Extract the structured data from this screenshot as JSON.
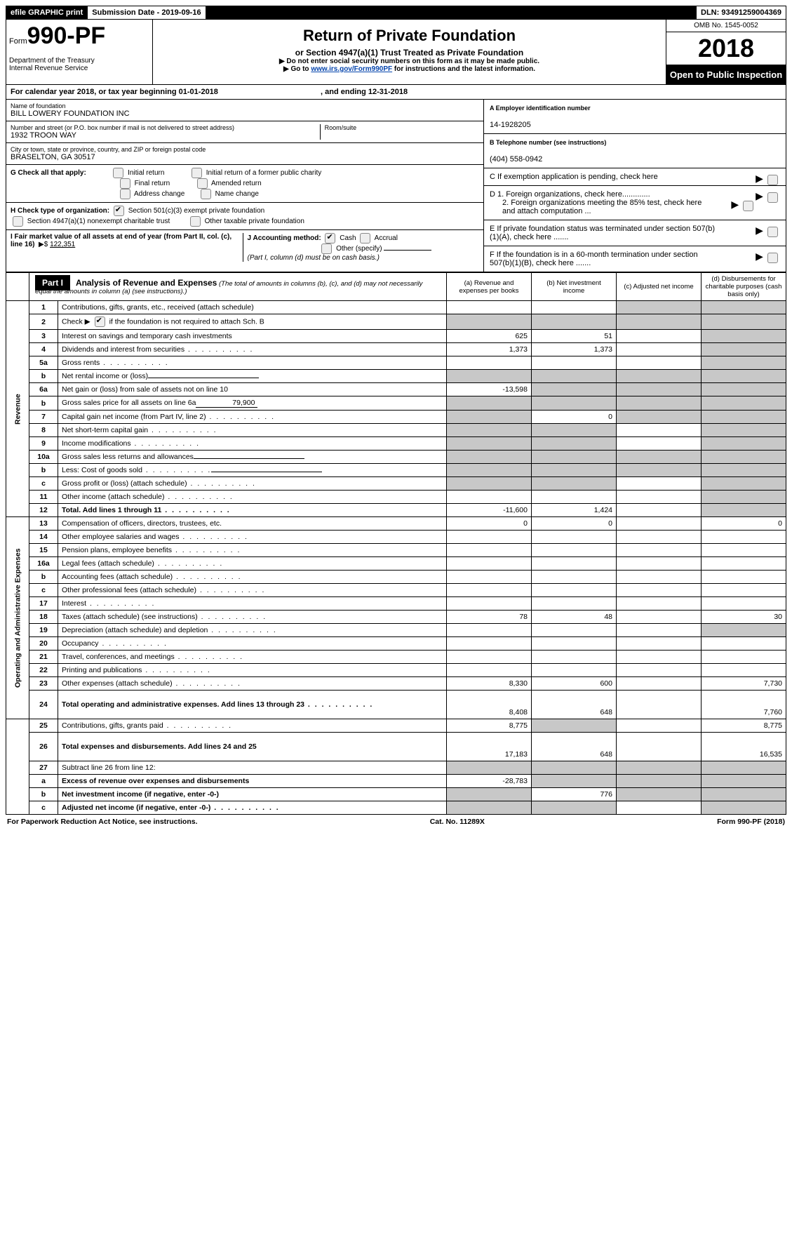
{
  "top": {
    "efile": "efile GRAPHIC print",
    "submission": "Submission Date - 2019-09-16",
    "dln": "DLN: 93491259004369"
  },
  "header": {
    "form_prefix": "Form",
    "form_number": "990-PF",
    "dept": "Department of the Treasury\nInternal Revenue Service",
    "title": "Return of Private Foundation",
    "subtitle": "or Section 4947(a)(1) Trust Treated as Private Foundation",
    "warn": "Do not enter social security numbers on this form as it may be made public.",
    "goto_prefix": "Go to ",
    "goto_link": "www.irs.gov/Form990PF",
    "goto_suffix": " for instructions and the latest information.",
    "omb": "OMB No. 1545-0052",
    "year": "2018",
    "open": "Open to Public Inspection"
  },
  "calendar": {
    "text_a": "For calendar year 2018, or tax year beginning 01-01-2018",
    "text_b": ", and ending 12-31-2018"
  },
  "entity": {
    "name_lbl": "Name of foundation",
    "name": "BILL LOWERY FOUNDATION INC",
    "street_lbl": "Number and street (or P.O. box number if mail is not delivered to street address)",
    "street": "1932 TROON WAY",
    "room_lbl": "Room/suite",
    "city_lbl": "City or town, state or province, country, and ZIP or foreign postal code",
    "city": "BRASELTON, GA   30517",
    "ein_lbl": "A Employer identification number",
    "ein": "14-1928205",
    "phone_lbl": "B Telephone number (see instructions)",
    "phone": "(404) 558-0942",
    "c": "C  If exemption application is pending, check here",
    "d1": "D 1. Foreign organizations, check here.............",
    "d2": "2. Foreign organizations meeting the 85% test, check here and attach computation ...",
    "e": "E   If private foundation status was terminated under section 507(b)(1)(A), check here .......",
    "f": "F   If the foundation is in a 60-month termination under section 507(b)(1)(B), check here ......."
  },
  "g": {
    "label": "G Check all that apply:",
    "opts": [
      "Initial return",
      "Initial return of a former public charity",
      "Final return",
      "Amended return",
      "Address change",
      "Name change"
    ]
  },
  "h": {
    "label": "H Check type of organization:",
    "opt1": "Section 501(c)(3) exempt private foundation",
    "opt2": "Section 4947(a)(1) nonexempt charitable trust",
    "opt3": "Other taxable private foundation"
  },
  "i": {
    "label": "I Fair market value of all assets at end of year (from Part II, col. (c), line 16)",
    "value": "122,351"
  },
  "j": {
    "label": "J Accounting method:",
    "cash": "Cash",
    "accrual": "Accrual",
    "other": "Other (specify)",
    "note": "(Part I, column (d) must be on cash basis.)"
  },
  "part1": {
    "label": "Part I",
    "title": "Analysis of Revenue and Expenses",
    "note": "(The total of amounts in columns (b), (c), and (d) may not necessarily equal the amounts in column (a) (see instructions).)",
    "cols": {
      "a": "(a)    Revenue and expenses per books",
      "b": "(b)    Net investment income",
      "c": "(c)    Adjusted net income",
      "d": "(d)    Disbursements for charitable purposes (cash basis only)"
    }
  },
  "side": {
    "rev": "Revenue",
    "exp": "Operating and Administrative Expenses"
  },
  "rows": [
    {
      "n": "1",
      "t": "Contributions, gifts, grants, etc., received (attach schedule)",
      "a": "",
      "b": "",
      "c": "g",
      "d": "g"
    },
    {
      "n": "2",
      "t": "Check ▶ __CHK__ if the foundation is not required to attach Sch. B",
      "a": "g",
      "b": "g",
      "c": "g",
      "d": "g"
    },
    {
      "n": "3",
      "t": "Interest on savings and temporary cash investments",
      "a": "625",
      "b": "51",
      "c": "",
      "d": "g"
    },
    {
      "n": "4",
      "t": "Dividends and interest from securities",
      "dots": true,
      "a": "1,373",
      "b": "1,373",
      "c": "",
      "d": "g"
    },
    {
      "n": "5a",
      "t": "Gross rents",
      "dots": true,
      "a": "",
      "b": "",
      "c": "",
      "d": "g"
    },
    {
      "n": "b",
      "t": "Net rental income or (loss)",
      "input": true,
      "a": "g",
      "b": "g",
      "c": "g",
      "d": "g"
    },
    {
      "n": "6a",
      "t": "Net gain or (loss) from sale of assets not on line 10",
      "a": "-13,598",
      "b": "g",
      "c": "g",
      "d": "g"
    },
    {
      "n": "b",
      "t": "Gross sales price for all assets on line 6a",
      "inline": "79,900",
      "a": "g",
      "b": "g",
      "c": "g",
      "d": "g"
    },
    {
      "n": "7",
      "t": "Capital gain net income (from Part IV, line 2)",
      "dots": true,
      "a": "g",
      "b": "0",
      "c": "g",
      "d": "g"
    },
    {
      "n": "8",
      "t": "Net short-term capital gain",
      "dots": true,
      "a": "g",
      "b": "g",
      "c": "",
      "d": "g"
    },
    {
      "n": "9",
      "t": "Income modifications",
      "dots": true,
      "a": "g",
      "b": "g",
      "c": "",
      "d": "g"
    },
    {
      "n": "10a",
      "t": "Gross sales less returns and allowances",
      "input": true,
      "a": "g",
      "b": "g",
      "c": "g",
      "d": "g"
    },
    {
      "n": "b",
      "t": "Less: Cost of goods sold",
      "dots": true,
      "input": true,
      "a": "g",
      "b": "g",
      "c": "g",
      "d": "g"
    },
    {
      "n": "c",
      "t": "Gross profit or (loss) (attach schedule)",
      "dots": true,
      "a": "g",
      "b": "g",
      "c": "",
      "d": "g"
    },
    {
      "n": "11",
      "t": "Other income (attach schedule)",
      "dots": true,
      "a": "",
      "b": "",
      "c": "",
      "d": "g"
    },
    {
      "n": "12",
      "t": "Total. Add lines 1 through 11",
      "bold": true,
      "dots": true,
      "a": "-11,600",
      "b": "1,424",
      "c": "",
      "d": "g"
    },
    {
      "n": "13",
      "t": "Compensation of officers, directors, trustees, etc.",
      "a": "0",
      "b": "0",
      "c": "",
      "d": "0"
    },
    {
      "n": "14",
      "t": "Other employee salaries and wages",
      "dots": true,
      "a": "",
      "b": "",
      "c": "",
      "d": ""
    },
    {
      "n": "15",
      "t": "Pension plans, employee benefits",
      "dots": true,
      "a": "",
      "b": "",
      "c": "",
      "d": ""
    },
    {
      "n": "16a",
      "t": "Legal fees (attach schedule)",
      "dots": true,
      "a": "",
      "b": "",
      "c": "",
      "d": ""
    },
    {
      "n": "b",
      "t": "Accounting fees (attach schedule)",
      "dots": true,
      "a": "",
      "b": "",
      "c": "",
      "d": ""
    },
    {
      "n": "c",
      "t": "Other professional fees (attach schedule)",
      "dots": true,
      "a": "",
      "b": "",
      "c": "",
      "d": ""
    },
    {
      "n": "17",
      "t": "Interest",
      "dots": true,
      "a": "",
      "b": "",
      "c": "",
      "d": ""
    },
    {
      "n": "18",
      "t": "Taxes (attach schedule) (see instructions)",
      "dots": true,
      "a": "78",
      "b": "48",
      "c": "",
      "d": "30"
    },
    {
      "n": "19",
      "t": "Depreciation (attach schedule) and depletion",
      "dots": true,
      "a": "",
      "b": "",
      "c": "",
      "d": "g"
    },
    {
      "n": "20",
      "t": "Occupancy",
      "dots": true,
      "a": "",
      "b": "",
      "c": "",
      "d": ""
    },
    {
      "n": "21",
      "t": "Travel, conferences, and meetings",
      "dots": true,
      "a": "",
      "b": "",
      "c": "",
      "d": ""
    },
    {
      "n": "22",
      "t": "Printing and publications",
      "dots": true,
      "a": "",
      "b": "",
      "c": "",
      "d": ""
    },
    {
      "n": "23",
      "t": "Other expenses (attach schedule)",
      "dots": true,
      "a": "8,330",
      "b": "600",
      "c": "",
      "d": "7,730"
    },
    {
      "n": "24",
      "t": "Total operating and administrative expenses. Add lines 13 through 23",
      "bold": true,
      "dots": true,
      "tall": true,
      "a": "8,408",
      "b": "648",
      "c": "",
      "d": "7,760"
    },
    {
      "n": "25",
      "t": "Contributions, gifts, grants paid",
      "dots": true,
      "a": "8,775",
      "b": "g",
      "c": "",
      "d": "8,775"
    },
    {
      "n": "26",
      "t": "Total expenses and disbursements. Add lines 24 and 25",
      "bold": true,
      "tall": true,
      "a": "17,183",
      "b": "648",
      "c": "",
      "d": "16,535"
    },
    {
      "n": "27",
      "t": "Subtract line 26 from line 12:",
      "a": "g",
      "b": "g",
      "c": "g",
      "d": "g"
    },
    {
      "n": "a",
      "t": "Excess of revenue over expenses and disbursements",
      "bold": true,
      "a": "-28,783",
      "b": "g",
      "c": "g",
      "d": "g"
    },
    {
      "n": "b",
      "t": "Net investment income (if negative, enter -0-)",
      "bold": true,
      "a": "g",
      "b": "776",
      "c": "g",
      "d": "g"
    },
    {
      "n": "c",
      "t": "Adjusted net income (if negative, enter -0-)",
      "bold": true,
      "dots": true,
      "a": "g",
      "b": "g",
      "c": "",
      "d": "g"
    }
  ],
  "footer": {
    "left": "For Paperwork Reduction Act Notice, see instructions.",
    "mid": "Cat. No. 11289X",
    "right": "Form 990-PF (2018)"
  }
}
